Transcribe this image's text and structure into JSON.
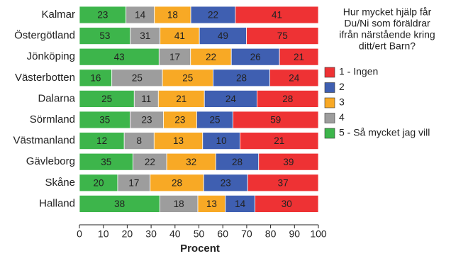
{
  "chart_data": {
    "type": "bar",
    "orientation": "horizontal",
    "stack": "percent",
    "categories": [
      "Kalmar",
      "Östergötland",
      "Jönköping",
      "Västerbotten",
      "Dalarna",
      "Sörmland",
      "Västmanland",
      "Gävleborg",
      "Skåne",
      "Halland"
    ],
    "series": [
      {
        "name": "5 - Så mycket jag vill",
        "color": "#3db54b",
        "values": [
          23,
          53,
          43,
          16,
          25,
          35,
          12,
          35,
          20,
          38
        ]
      },
      {
        "name": "4",
        "color": "#9d9d9d",
        "values": [
          14,
          31,
          17,
          25,
          11,
          23,
          8,
          22,
          17,
          18
        ]
      },
      {
        "name": "3",
        "color": "#f8a925",
        "values": [
          18,
          41,
          22,
          25,
          21,
          23,
          13,
          32,
          28,
          13
        ]
      },
      {
        "name": "2",
        "color": "#3f5fb1",
        "values": [
          22,
          49,
          26,
          28,
          24,
          25,
          10,
          28,
          23,
          14
        ]
      },
      {
        "name": "1 - Ingen",
        "color": "#ee3234",
        "values": [
          41,
          75,
          21,
          24,
          28,
          59,
          21,
          39,
          37,
          30
        ]
      }
    ],
    "xlabel": "Procent",
    "xlim": [
      0,
      100
    ],
    "xticks": [
      0,
      10,
      20,
      30,
      40,
      50,
      60,
      70,
      80,
      90,
      100
    ],
    "legend_title": [
      "Hur mycket hjälp får",
      "Du/Ni som föräldrar",
      "ifrån närstående kring",
      "ditt/ert Barn?"
    ]
  }
}
